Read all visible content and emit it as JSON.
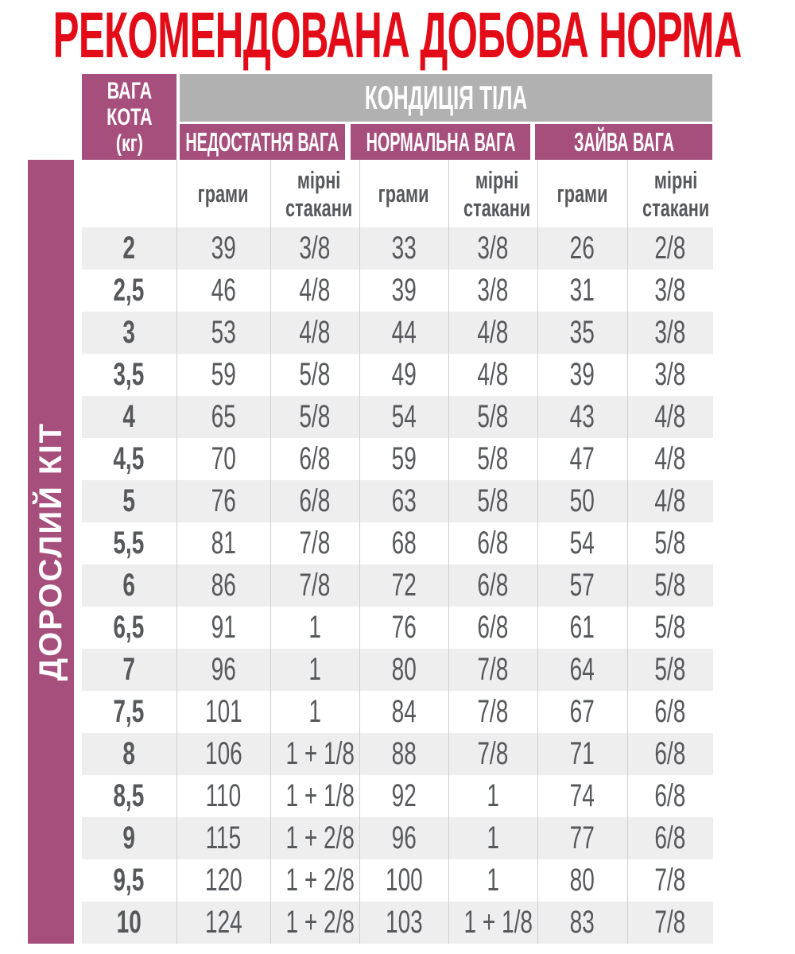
{
  "title": "РЕКОМЕНДОВАНА ДОБОВА НОРМА",
  "side_label": "ДОРОСЛИЙ КІТ",
  "colors": {
    "title_red": "#e30b17",
    "magenta": "#a64f7d",
    "header_gray": "#b2b1b2",
    "row_stripe": "#efeeef",
    "text_gray": "#57585b"
  },
  "table": {
    "weight_header_lines": [
      "ВАГА",
      "КОТА",
      "(кг)"
    ],
    "condition_header": "КОНДИЦІЯ ТІЛА",
    "groups": [
      "НЕДОСТАТНЯ ВАГА",
      "НОРМАЛЬНА ВАГА",
      "ЗАЙВА ВАГА"
    ],
    "unit_grams": "грами",
    "unit_cups_lines": [
      "мірні",
      "стакани"
    ],
    "rows": [
      {
        "weight": "2",
        "cells": [
          "39",
          "3/8",
          "33",
          "3/8",
          "26",
          "2/8"
        ]
      },
      {
        "weight": "2,5",
        "cells": [
          "46",
          "4/8",
          "39",
          "3/8",
          "31",
          "3/8"
        ]
      },
      {
        "weight": "3",
        "cells": [
          "53",
          "4/8",
          "44",
          "4/8",
          "35",
          "3/8"
        ]
      },
      {
        "weight": "3,5",
        "cells": [
          "59",
          "5/8",
          "49",
          "4/8",
          "39",
          "3/8"
        ]
      },
      {
        "weight": "4",
        "cells": [
          "65",
          "5/8",
          "54",
          "5/8",
          "43",
          "4/8"
        ]
      },
      {
        "weight": "4,5",
        "cells": [
          "70",
          "6/8",
          "59",
          "5/8",
          "47",
          "4/8"
        ]
      },
      {
        "weight": "5",
        "cells": [
          "76",
          "6/8",
          "63",
          "5/8",
          "50",
          "4/8"
        ]
      },
      {
        "weight": "5,5",
        "cells": [
          "81",
          "7/8",
          "68",
          "6/8",
          "54",
          "5/8"
        ]
      },
      {
        "weight": "6",
        "cells": [
          "86",
          "7/8",
          "72",
          "6/8",
          "57",
          "5/8"
        ]
      },
      {
        "weight": "6,5",
        "cells": [
          "91",
          "1",
          "76",
          "6/8",
          "61",
          "5/8"
        ]
      },
      {
        "weight": "7",
        "cells": [
          "96",
          "1",
          "80",
          "7/8",
          "64",
          "5/8"
        ]
      },
      {
        "weight": "7,5",
        "cells": [
          "101",
          "1",
          "84",
          "7/8",
          "67",
          "6/8"
        ]
      },
      {
        "weight": "8",
        "cells": [
          "106",
          "1 + 1/8",
          "88",
          "7/8",
          "71",
          "6/8"
        ]
      },
      {
        "weight": "8,5",
        "cells": [
          "110",
          "1 + 1/8",
          "92",
          "1",
          "74",
          "6/8"
        ]
      },
      {
        "weight": "9",
        "cells": [
          "115",
          "1 + 2/8",
          "96",
          "1",
          "77",
          "6/8"
        ]
      },
      {
        "weight": "9,5",
        "cells": [
          "120",
          "1 + 2/8",
          "100",
          "1",
          "80",
          "7/8"
        ]
      },
      {
        "weight": "10",
        "cells": [
          "124",
          "1 + 2/8",
          "103",
          "1 + 1/8",
          "83",
          "7/8"
        ]
      }
    ]
  }
}
